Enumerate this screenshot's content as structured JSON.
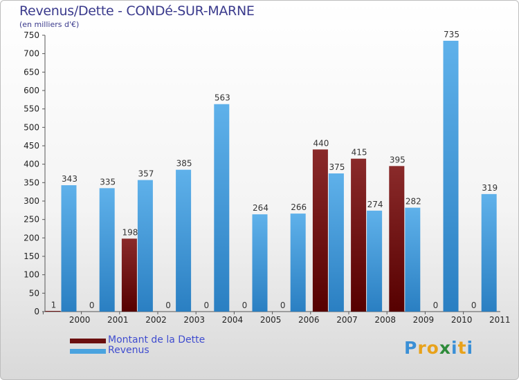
{
  "chart_data": {
    "type": "bar",
    "title": "Revenus/Dette - CONDé-SUR-MARNE",
    "subtitle": "(en milliers d'€)",
    "categories": [
      "2000",
      "2001",
      "2002",
      "2003",
      "2004",
      "2005",
      "2006",
      "2007",
      "2008",
      "2009",
      "2010",
      "2011"
    ],
    "series": [
      {
        "name": "Montant de la Dette",
        "color": "#7a1d1d",
        "values": [
          1,
          0,
          198,
          0,
          0,
          0,
          0,
          440,
          415,
          395,
          0,
          0
        ]
      },
      {
        "name": "Revenus",
        "color": "#4aa3df",
        "values": [
          343,
          335,
          357,
          385,
          563,
          264,
          266,
          375,
          274,
          282,
          735,
          319
        ]
      }
    ],
    "ylim": [
      0,
      750
    ],
    "yticks": [
      0,
      50,
      100,
      150,
      200,
      250,
      300,
      350,
      400,
      450,
      500,
      550,
      600,
      650,
      700,
      750
    ],
    "grid": false,
    "legend_position": "bottom-left"
  },
  "logo": {
    "letters": [
      "P",
      "r",
      "o",
      "x",
      "i",
      "t",
      "i"
    ],
    "colors": [
      "#3a8fd6",
      "#e8a21b",
      "#e8a21b",
      "#2e8b3a",
      "#3a8fd6",
      "#e8a21b",
      "#3a8fd6"
    ]
  }
}
